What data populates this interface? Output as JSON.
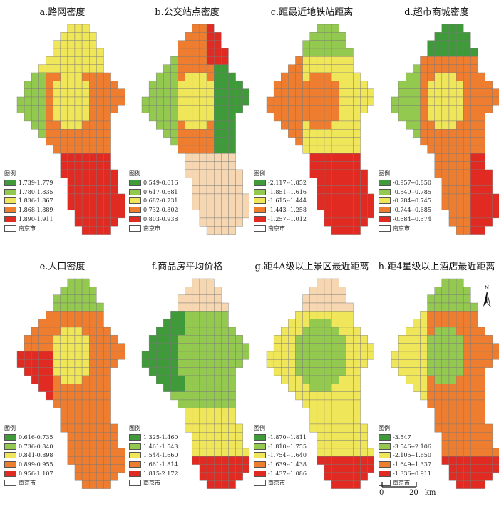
{
  "colors": {
    "class1": "#3f9a3a",
    "class2": "#93c94e",
    "class3": "#f0e65a",
    "class4": "#ee7d2f",
    "class5": "#e12b22",
    "base": "#f6d7b2",
    "boundary": "#777777"
  },
  "legend_title": "图例",
  "city_label": "南京市",
  "panels": [
    {
      "title": "a.路网密度",
      "classes": [
        "1.739-1.779",
        "1.780-1.835",
        "1.836-1.867",
        "1.868-1.889",
        "1.890-1.911"
      ]
    },
    {
      "title": "b.公交站点密度",
      "classes": [
        "0.549-0.616",
        "0.617-0.681",
        "0.682-0.731",
        "0.732-0.802",
        "0.803-0.938"
      ]
    },
    {
      "title": "c.距最近地铁站距离",
      "classes": [
        "-2.117--1.852",
        "-1.851--1.616",
        "-1.615--1.444",
        "-1.443--1.258",
        "-1.257--1.012"
      ]
    },
    {
      "title": "d.超市商城密度",
      "classes": [
        "-0.957--0.850",
        "-0.849--0.785",
        "-0.784--0.745",
        "-0.744--0.685",
        "-0.684--0.574"
      ]
    },
    {
      "title": "e.人口密度",
      "classes": [
        "0.616-0.735",
        "0.736-0.840",
        "0.841-0.898",
        "0.899-0.955",
        "0.956-1.107"
      ]
    },
    {
      "title": "f.商品房平均价格",
      "classes": [
        "1.325-1.460",
        "1.461-1.543",
        "1.544-1.660",
        "1.661-1.814",
        "1.815-2.172"
      ]
    },
    {
      "title": "g.距4A级以上景区最近距离",
      "classes": [
        "-1.870--1.811",
        "-1.810--1.755",
        "-1.754--1.640",
        "-1.639--1.438",
        "-1.437--1.086"
      ]
    },
    {
      "title": "h.距4星级以上酒店最近距离",
      "classes": [
        "-3.547",
        "-3.546--2.106",
        "-2.105--1.650",
        "-1.649--1.337",
        "-1.336--0.911"
      ]
    }
  ],
  "north_label": "N",
  "scale": {
    "start": "0",
    "end": "20",
    "unit": "km"
  }
}
